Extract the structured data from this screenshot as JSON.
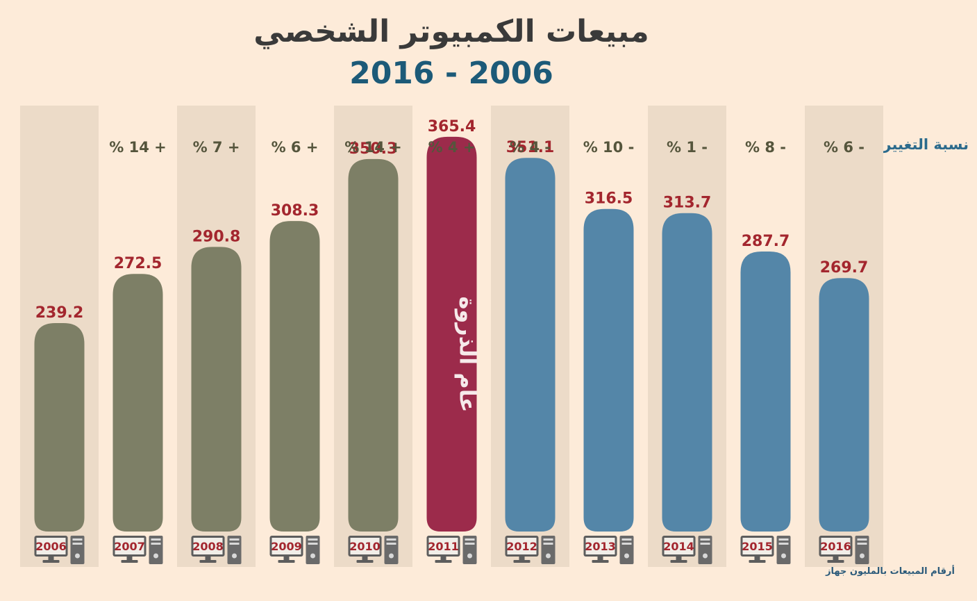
{
  "chart_data": {
    "type": "bar",
    "title": "مبيعات الكمبيوتر الشخصي",
    "subtitle": "2016 - 2006",
    "categories": [
      "2006",
      "2007",
      "2008",
      "2009",
      "2010",
      "2011",
      "2012",
      "2013",
      "2014",
      "2015",
      "2016"
    ],
    "values": [
      239.2,
      272.5,
      290.8,
      308.3,
      350.3,
      365.4,
      351.1,
      316.5,
      313.7,
      287.7,
      269.7
    ],
    "value_labels": [
      "239.2",
      "272.5",
      "290.8",
      "308.3",
      "350.3",
      "365.4",
      "351.1",
      "316.5",
      "313.7",
      "287.7",
      "269.7"
    ],
    "changes": [
      "",
      "% 14 +",
      "% 7 +",
      "% 6 +",
      "% 14 +",
      "% 4 +",
      "% 4 -",
      "% 10 -",
      "% 1 -",
      "% 8 -",
      "% 6 -"
    ],
    "change_row_label": "نسبة التغيير",
    "peak_label": "عام الذروة",
    "peak_index": 5,
    "footnote": "أرقام المبيعات بالمليون جهاز",
    "colors": {
      "growth": "#7d7f66",
      "peak": "#9c2b4b",
      "decline": "#5486a8",
      "value_label": "#a3262e",
      "change_text": "#55553c",
      "column_shade": "#ecdbc8",
      "background": "#fdebd9"
    }
  }
}
